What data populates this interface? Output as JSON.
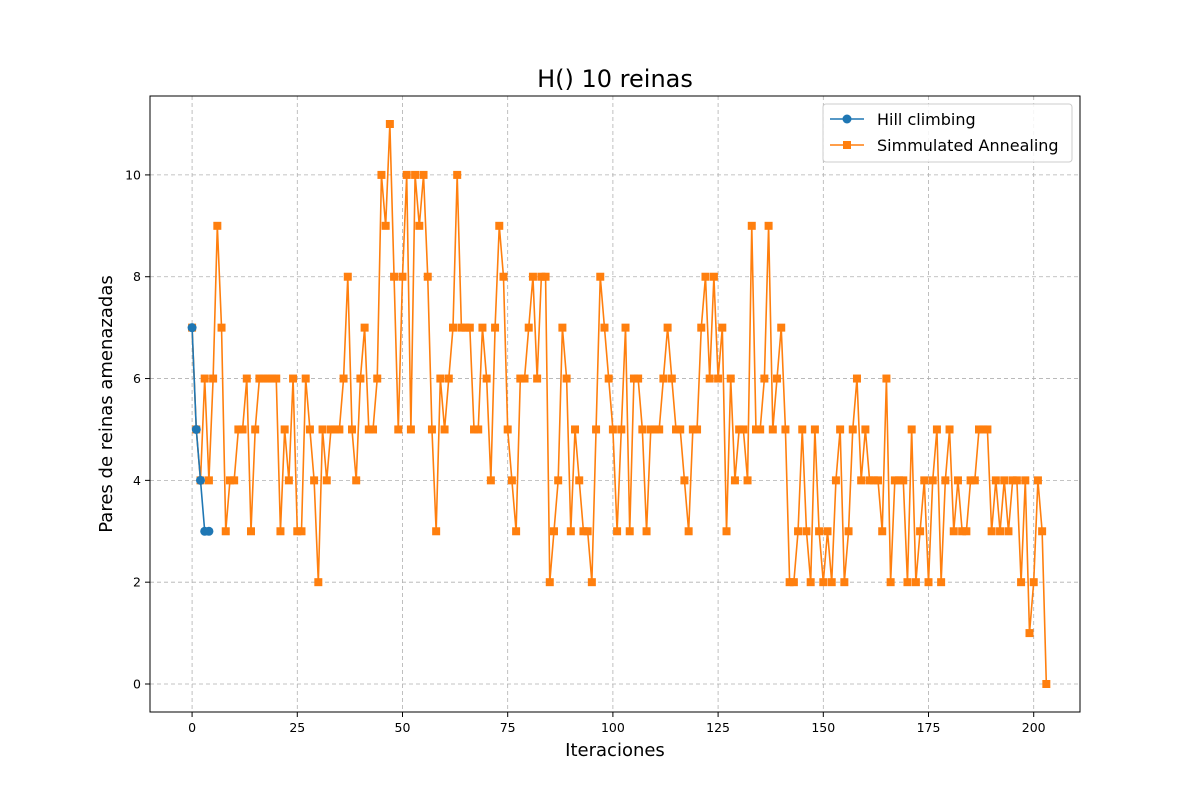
{
  "chart_data": {
    "type": "line",
    "title": "H() 10 reinas",
    "xlabel": "Iteraciones",
    "ylabel": "Pares de reinas amenazadas",
    "xlim": [
      -10,
      211
    ],
    "ylim": [
      -0.55,
      11.55
    ],
    "xticks": [
      0,
      25,
      50,
      75,
      100,
      125,
      150,
      175,
      200
    ],
    "yticks": [
      0,
      2,
      4,
      6,
      8,
      10
    ],
    "grid": true,
    "legend_position": "top-right",
    "series": [
      {
        "name": "Hill climbing",
        "color": "#1f77b4",
        "marker": "circle",
        "x": [
          0,
          1,
          2,
          3,
          4
        ],
        "y": [
          7,
          5,
          4,
          3,
          3
        ]
      },
      {
        "name": "Simmulated Annealing",
        "color": "#ff7f0e",
        "marker": "square",
        "y": [
          7,
          5,
          4,
          6,
          4,
          6,
          9,
          7,
          3,
          4,
          4,
          5,
          5,
          6,
          3,
          5,
          6,
          6,
          6,
          6,
          6,
          3,
          5,
          4,
          6,
          3,
          3,
          6,
          5,
          4,
          2,
          5,
          4,
          5,
          5,
          5,
          6,
          8,
          5,
          4,
          6,
          7,
          5,
          5,
          6,
          10,
          9,
          11,
          8,
          5,
          8,
          10,
          5,
          10,
          9,
          10,
          8,
          5,
          3,
          6,
          5,
          6,
          7,
          10,
          7,
          7,
          7,
          5,
          5,
          7,
          6,
          4,
          7,
          9,
          8,
          5,
          4,
          3,
          6,
          6,
          7,
          8,
          6,
          8,
          8,
          2,
          3,
          4,
          7,
          6,
          3,
          5,
          4,
          3,
          3,
          2,
          5,
          8,
          7,
          6,
          5,
          3,
          5,
          7,
          3,
          6,
          6,
          5,
          3,
          5,
          5,
          5,
          6,
          7,
          6,
          5,
          5,
          4,
          3,
          5,
          5,
          7,
          8,
          6,
          8,
          6,
          7,
          3,
          6,
          4,
          5,
          5,
          4,
          9,
          5,
          5,
          6,
          9,
          5,
          6,
          7,
          5,
          2,
          2,
          3,
          5,
          3,
          2,
          5,
          3,
          2,
          3,
          2,
          4,
          5,
          2,
          3,
          5,
          6,
          4,
          5,
          4,
          4,
          4,
          3,
          6,
          2,
          4,
          4,
          4,
          2,
          5,
          2,
          3,
          4,
          2,
          4,
          5,
          2,
          4,
          5,
          3,
          4,
          3,
          3,
          4,
          4,
          5,
          5,
          5,
          3,
          4,
          3,
          4,
          3,
          4,
          4,
          2,
          4,
          1,
          2,
          4,
          3,
          0
        ]
      }
    ]
  }
}
